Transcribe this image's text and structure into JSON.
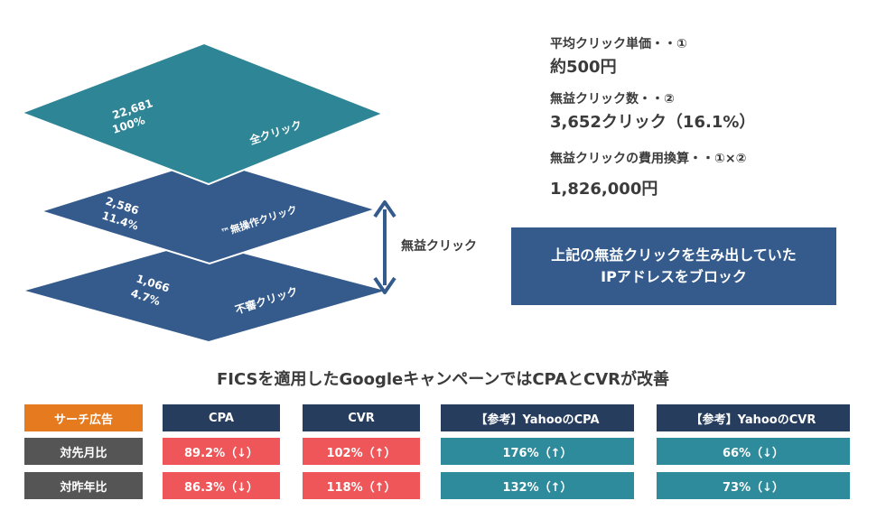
{
  "layers": [
    {
      "count": "22,681",
      "pct": "100%",
      "label": "全クリック",
      "color": "#2e8595"
    },
    {
      "count": "2,586",
      "pct": "11.4%",
      "label": "™無操作クリック",
      "color": "#345b8c"
    },
    {
      "count": "1,066",
      "pct": "4.7%",
      "label": "不審クリック",
      "color": "#345b8c"
    }
  ],
  "bracket_label": "無益クリック",
  "stats": [
    {
      "label": "平均クリック単価・・①",
      "value": "約500円"
    },
    {
      "label": "無益クリック数・・②",
      "value": "3,652クリック（16.1%）"
    },
    {
      "label": "無益クリックの費用換算・・①×②",
      "value": "1,826,000円"
    }
  ],
  "cta": {
    "line1": "上記の無益クリックを生み出していた",
    "line2": "IPアドレスをブロック"
  },
  "headline": "FICSを適用したGoogleキャンペーンではCPAとCVRが改善",
  "table": {
    "corner": "サーチ広告",
    "columns": [
      "CPA",
      "CVR",
      "【参考】YahooのCPA",
      "【参考】YahooのCVR"
    ],
    "rows": [
      {
        "label": "対先月比",
        "values": [
          "89.2%（↓）",
          "102%（↑）",
          "176%（↑）",
          "66%（↓）"
        ]
      },
      {
        "label": "対昨年比",
        "values": [
          "86.3%（↓）",
          "118%（↑）",
          "132%（↑）",
          "73%（↓）"
        ]
      }
    ]
  },
  "colors": {
    "teal": "#2e8595",
    "navy": "#345b8c",
    "header": "#263d5e",
    "orange": "#e57a1e",
    "red": "#ef5659",
    "table_teal": "#2e8b9b",
    "row_gray": "#555555"
  }
}
